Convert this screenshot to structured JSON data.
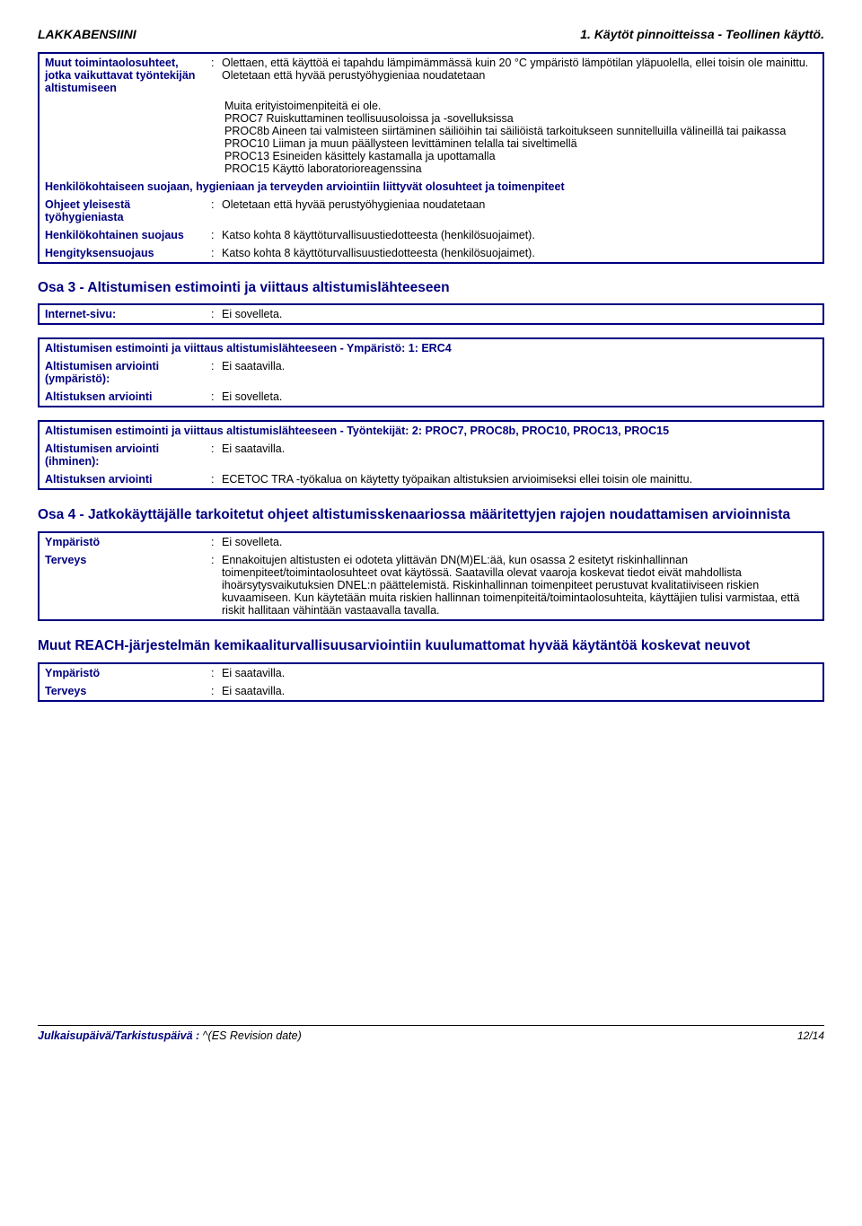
{
  "header": {
    "left": "LAKKABENSIINI",
    "right": "1. Käytöt pinnoitteissa - Teollinen käyttö."
  },
  "box1": {
    "row1_label": "Muut toimintaolosuhteet, jotka vaikuttavat työntekijän altistumiseen",
    "row1_val": "Olettaen, että käyttöä ei tapahdu lämpimämmässä kuin 20 °C ympäristö lämpötilan yläpuolella, ellei toisin ole mainittu.\nOletetaan että hyvää perustyöhygieniaa noudatetaan",
    "mid_block": "Muita erityistoimenpiteitä ei ole.\nPROC7 Ruiskuttaminen teollisuusoloissa ja -sovelluksissa\nPROC8b Aineen tai valmisteen siirtäminen säiliöihin tai säiliöistä tarkoitukseen sunnitelluilla välineillä tai paikassa\nPROC10 Liiman ja muun päällysteen levittäminen telalla tai siveltimellä\nPROC13 Esineiden käsittely kastamalla ja upottamalla\nPROC15 Käyttö laboratorioreagenssina",
    "band": "Henkilökohtaiseen suojaan, hygieniaan ja terveyden arviointiin liittyvät olosuhteet ja toimenpiteet",
    "r2_label": "Ohjeet yleisestä työhygieniasta",
    "r2_val": "Oletetaan että hyvää perustyöhygieniaa noudatetaan",
    "r3_label": "Henkilökohtainen suojaus",
    "r3_val": "Katso kohta 8 käyttöturvallisuustiedotteesta (henkilösuojaimet).",
    "r4_label": "Hengityksensuojaus",
    "r4_val": "Katso kohta 8 käyttöturvallisuustiedotteesta (henkilösuojaimet)."
  },
  "sec3_title": "Osa 3 - Altistumisen estimointi ja viittaus altistumislähteeseen",
  "box2": {
    "label": "Internet-sivu:",
    "val": "Ei sovelleta."
  },
  "box3": {
    "head": "Altistumisen estimointi ja viittaus altistumislähteeseen - Ympäristö: 1: ERC4",
    "r1_label": "Altistumisen arviointi (ympäristö):",
    "r1_val": "Ei saatavilla.",
    "r2_label": "Altistuksen arviointi",
    "r2_val": "Ei sovelleta."
  },
  "box4": {
    "head": "Altistumisen estimointi ja viittaus altistumislähteeseen - Työntekijät: 2: PROC7, PROC8b, PROC10, PROC13, PROC15",
    "r1_label": "Altistumisen arviointi (ihminen):",
    "r1_val": "Ei saatavilla.",
    "r2_label": "Altistuksen arviointi",
    "r2_val": "ECETOC TRA -työkalua on käytetty työpaikan altistuksien arvioimiseksi ellei toisin ole mainittu."
  },
  "sec4_title": "Osa 4 - Jatkokäyttäjälle tarkoitetut ohjeet altistumisskenaariossa määritettyjen rajojen noudattamisen arvioinnista",
  "box5": {
    "r1_label": "Ympäristö",
    "r1_val": "Ei sovelleta.",
    "r2_label": "Terveys",
    "r2_val": "Ennakoitujen altistusten ei odoteta ylittävän DN(M)EL:ää, kun osassa 2 esitetyt riskinhallinnan toimenpiteet/toimintaolosuhteet ovat käytössä. Saatavilla olevat vaaroja koskevat tiedot eivät mahdollista ihoärsytysvaikutuksien DNEL:n päättelemistä. Riskinhallinnan toimenpiteet perustuvat kvalitatiiviseen riskien kuvaamiseen. Kun käytetään muita riskien hallinnan toimenpiteitä/toimintaolosuhteita, käyttäjien tulisi varmistaa, että riskit hallitaan vähintään vastaavalla tavalla."
  },
  "sec5_title": "Muut REACH-järjestelmän kemikaaliturvallisuusarviointiin kuulumattomat hyvää käytäntöä koskevat neuvot",
  "box6": {
    "r1_label": "Ympäristö",
    "r1_val": "Ei saatavilla.",
    "r2_label": "Terveys",
    "r2_val": "Ei saatavilla."
  },
  "footer": {
    "left_label": "Julkaisupäivä/Tarkistuspäivä",
    "left_val": "^(ES Revision date)",
    "right": "12/14"
  },
  "colors": {
    "blue": "#000080",
    "black": "#000000",
    "bg": "#ffffff"
  }
}
